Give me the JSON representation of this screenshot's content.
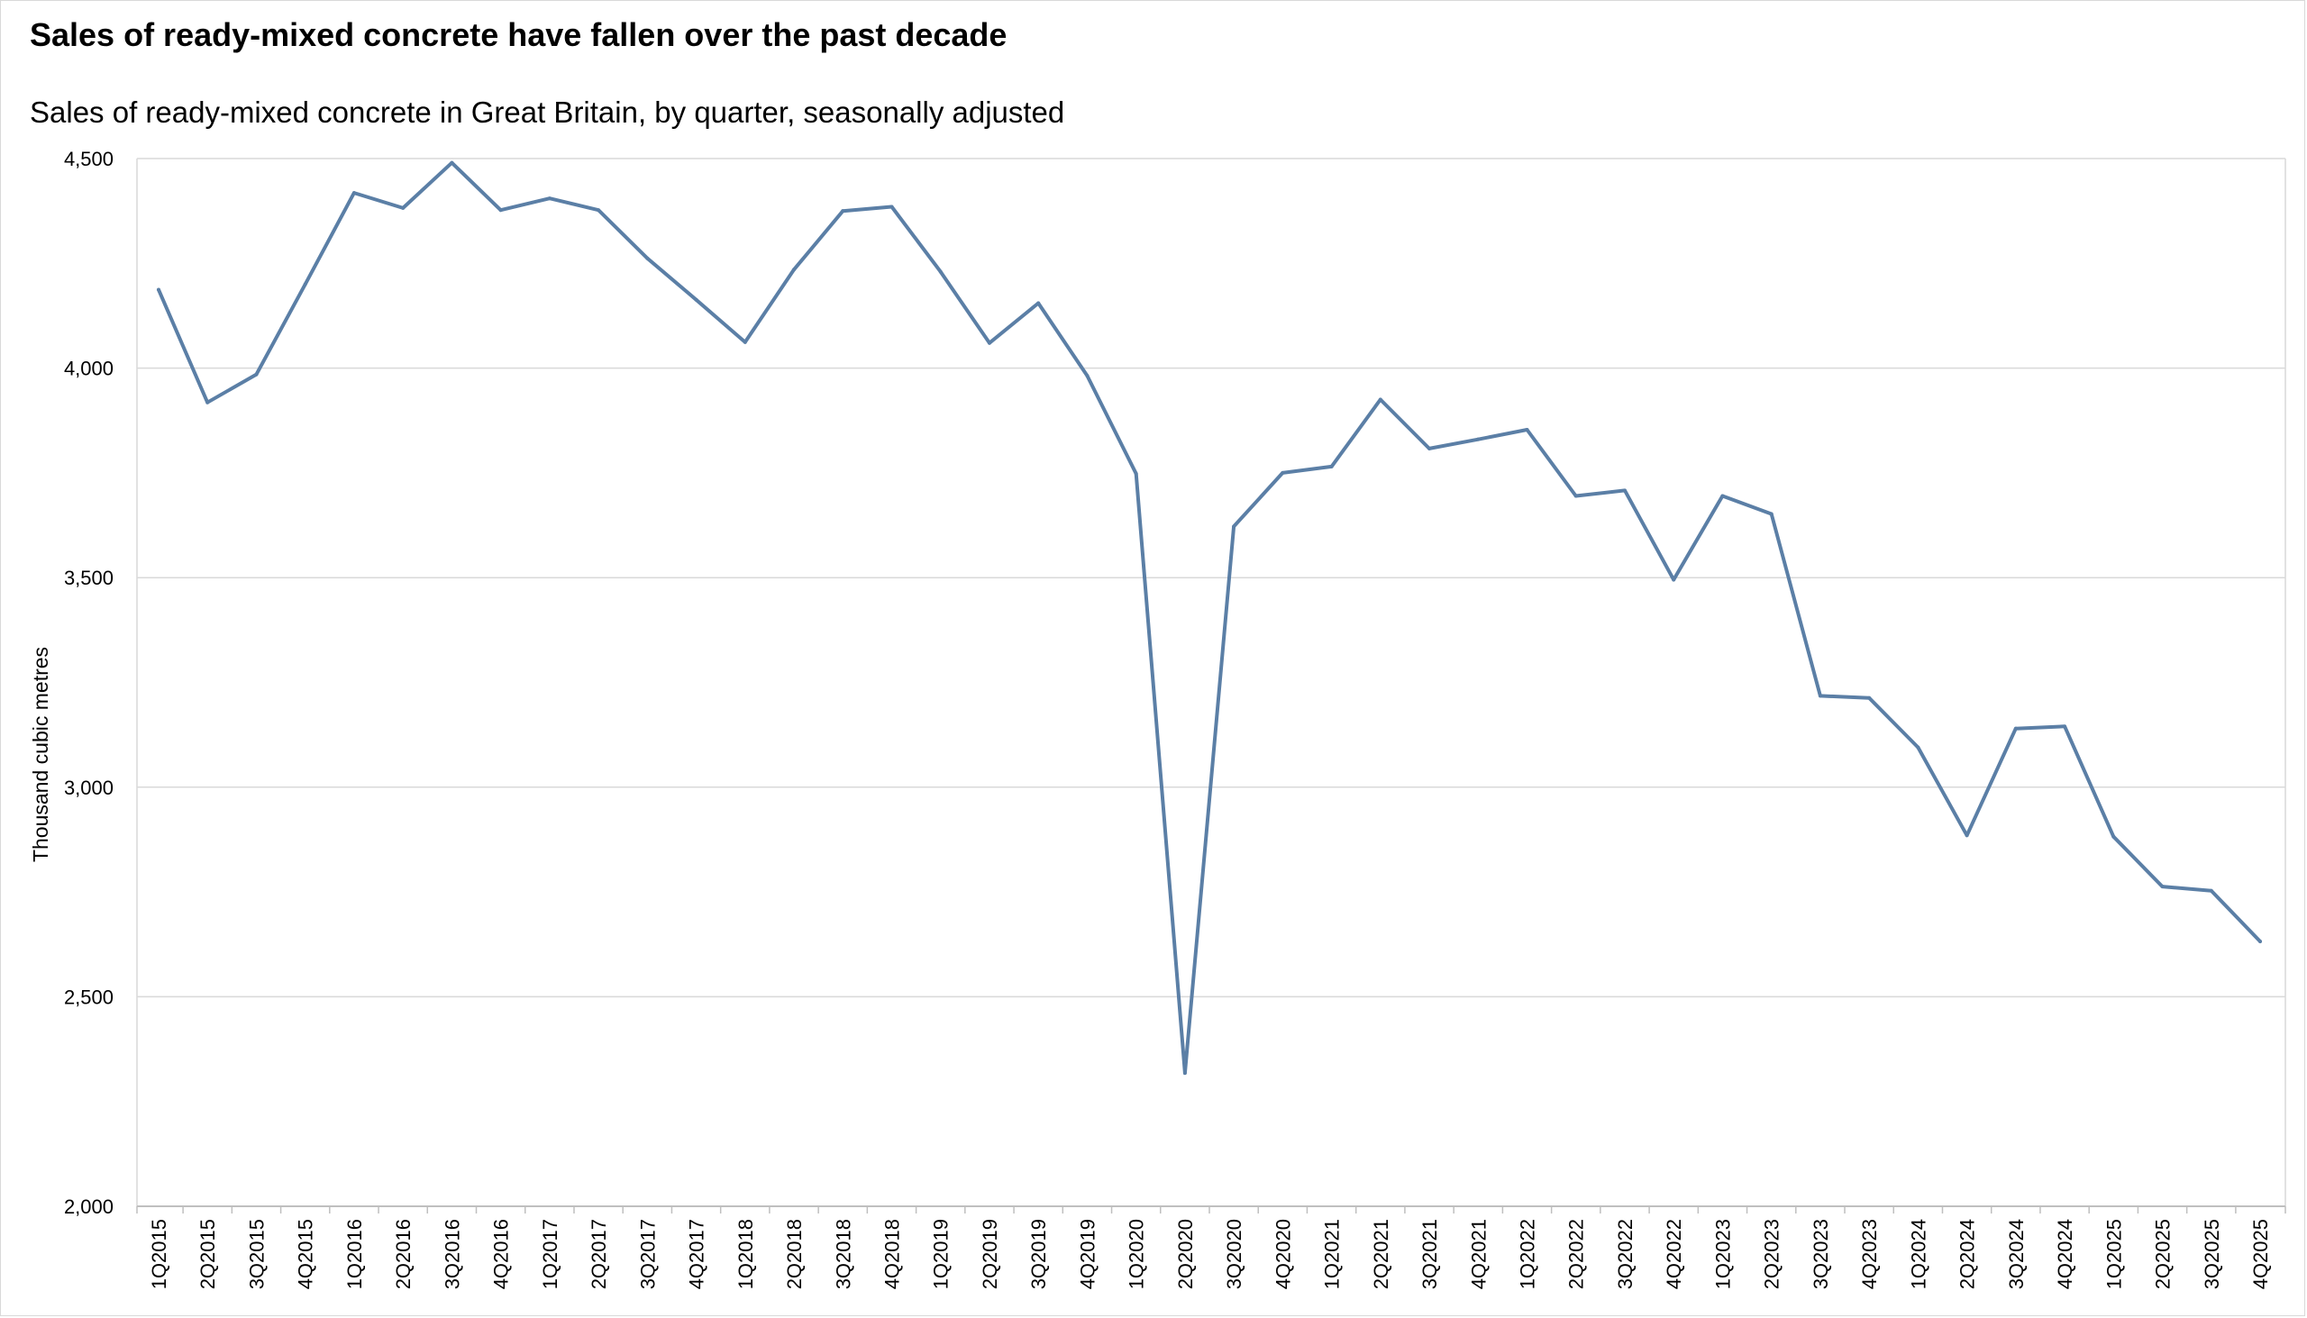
{
  "chart_data": {
    "type": "line",
    "title": "Sales of ready-mixed concrete have fallen over the past decade",
    "subtitle": "Sales of ready-mixed concrete in Great Britain, by quarter, seasonally adjusted",
    "xlabel": "",
    "ylabel": "Thousand cubic metres",
    "ylim": [
      2000,
      4500
    ],
    "yticks": [
      2000,
      2500,
      3000,
      3500,
      4000,
      4500
    ],
    "ytick_labels": [
      "2,000",
      "2,500",
      "3,000",
      "3,500",
      "4,000",
      "4,500"
    ],
    "grid": true,
    "legend": "none",
    "line_color": "#5b7fa6",
    "gridline_color": "#d9d9d9",
    "categories": [
      "1Q2015",
      "2Q2015",
      "3Q2015",
      "4Q2015",
      "1Q2016",
      "2Q2016",
      "3Q2016",
      "4Q2016",
      "1Q2017",
      "2Q2017",
      "3Q2017",
      "4Q2017",
      "1Q2018",
      "2Q2018",
      "3Q2018",
      "4Q2018",
      "1Q2019",
      "2Q2019",
      "3Q2019",
      "4Q2019",
      "1Q2020",
      "2Q2020",
      "3Q2020",
      "4Q2020",
      "1Q2021",
      "2Q2021",
      "3Q2021",
      "4Q2021",
      "1Q2022",
      "2Q2022",
      "3Q2022",
      "4Q2022",
      "1Q2023",
      "2Q2023",
      "3Q2023",
      "4Q2023",
      "1Q2024",
      "2Q2024",
      "3Q2024",
      "4Q2024",
      "1Q2025",
      "2Q2025",
      "3Q2025",
      "4Q2025"
    ],
    "series": [
      {
        "values": [
          4187,
          3918,
          3985,
          4200,
          4418,
          4382,
          4490,
          4377,
          4405,
          4377,
          4262,
          4163,
          4062,
          4235,
          4375,
          4385,
          4230,
          4060,
          4155,
          3982,
          3748,
          2318,
          3622,
          3750,
          3765,
          3925,
          3808,
          3830,
          3853,
          3695,
          3708,
          3495,
          3695,
          3652,
          3218,
          3213,
          3095,
          2885,
          3140,
          3145,
          2882,
          2763,
          2753,
          2632
        ]
      }
    ]
  }
}
